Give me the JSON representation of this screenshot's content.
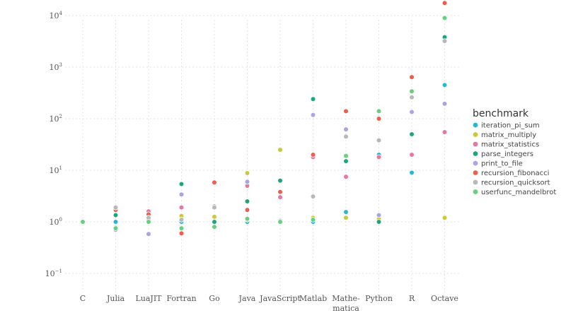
{
  "chart_data": {
    "type": "scatter",
    "title": "",
    "xlabel": "",
    "ylabel": "",
    "y_scale": "log",
    "ylim": [
      0.1,
      20000
    ],
    "grid": true,
    "categories": [
      "C",
      "Julia",
      "LuaJIT",
      "Fortran",
      "Go",
      "Java",
      "JavaScript",
      "Matlab",
      "Mathe-\nmatica",
      "Python",
      "R",
      "Octave"
    ],
    "y_ticks": [
      {
        "value": 0.1,
        "base": "10",
        "exp": "−1"
      },
      {
        "value": 1,
        "base": "10",
        "exp": "0"
      },
      {
        "value": 10,
        "base": "10",
        "exp": "1"
      },
      {
        "value": 100,
        "base": "10",
        "exp": "2"
      },
      {
        "value": 1000,
        "base": "10",
        "exp": "3"
      },
      {
        "value": 10000,
        "base": "10",
        "exp": "4"
      }
    ],
    "legend": {
      "title": "benchmark",
      "position": "right"
    },
    "series": [
      {
        "name": "iteration_pi_sum",
        "color": "#29b6d6",
        "values": [
          1.0,
          1.0,
          1.0,
          1.0,
          1.0,
          1.0,
          1.0,
          1.0,
          1.55,
          20,
          9,
          450
        ]
      },
      {
        "name": "matrix_multiply",
        "color": "#c9c93a",
        "values": [
          1.0,
          0.78,
          1.15,
          1.3,
          1.25,
          8.8,
          25,
          1.2,
          1.2,
          1.15,
          null,
          1.2
        ]
      },
      {
        "name": "matrix_statistics",
        "color": "#e8769e",
        "values": [
          1.0,
          1.8,
          1.6,
          1.9,
          5.8,
          5.0,
          3.0,
          18,
          7.5,
          18,
          20,
          55
        ]
      },
      {
        "name": "parse_integers",
        "color": "#1ea57a",
        "values": [
          1.0,
          1.35,
          1.1,
          5.4,
          1.0,
          2.5,
          6.3,
          240,
          15,
          1.0,
          50,
          3800
        ]
      },
      {
        "name": "print_to_file",
        "color": "#a9a4e4",
        "values": [
          1.0,
          0.7,
          0.58,
          3.4,
          2.0,
          6.0,
          1.05,
          118,
          62,
          1.35,
          135,
          195
        ]
      },
      {
        "name": "recursion_fibonacci",
        "color": "#ee5d4e",
        "values": [
          1.0,
          1.7,
          1.4,
          0.6,
          5.8,
          1.7,
          3.8,
          20,
          140,
          100,
          640,
          17500
        ]
      },
      {
        "name": "recursion_quicksort",
        "color": "#b8b8b8",
        "values": [
          1.0,
          1.9,
          1.2,
          1.1,
          1.9,
          1.1,
          1.05,
          3.1,
          45,
          38,
          260,
          3200
        ]
      },
      {
        "name": "userfunc_mandelbrot",
        "color": "#66d17a",
        "values": [
          1.0,
          0.75,
          1.0,
          0.75,
          0.8,
          1.15,
          1.0,
          1.1,
          19,
          140,
          340,
          9000
        ]
      }
    ]
  }
}
